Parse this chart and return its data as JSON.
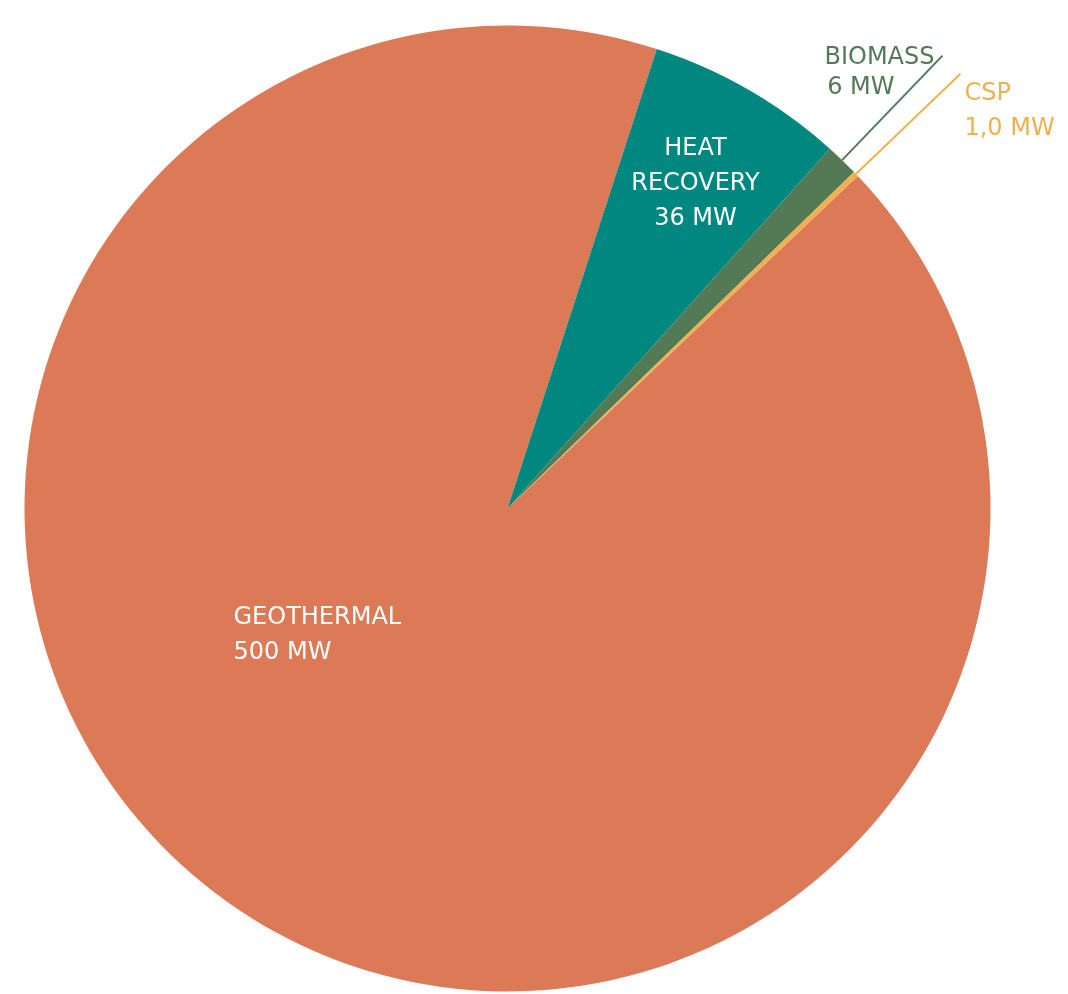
{
  "chart_data": {
    "type": "pie",
    "categories": [
      "GEOTHERMAL",
      "HEAT RECOVERY",
      "BIOMASS",
      "CSP"
    ],
    "values": [
      500,
      36,
      6,
      1.0
    ],
    "value_labels": [
      "500 MW",
      "36 MW",
      "6 MW",
      "1,0 MW"
    ],
    "colors": [
      "#dc7a58",
      "#00877f",
      "#537a55",
      "#f0b050"
    ],
    "legend": false
  }
}
